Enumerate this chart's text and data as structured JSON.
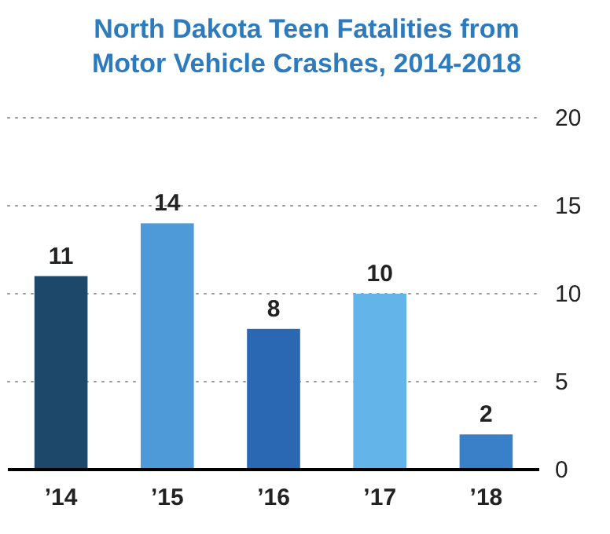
{
  "chart_data": {
    "type": "bar",
    "title": "North Dakota Teen Fatalities from Motor Vehicle Crashes, 2014-2018",
    "categories": [
      "’14",
      "’15",
      "’16",
      "’17",
      "’18"
    ],
    "values": [
      11,
      14,
      8,
      10,
      2
    ],
    "colors": [
      "#1d4869",
      "#4e9ad8",
      "#2a68b3",
      "#62b4e9",
      "#3a80c9"
    ],
    "ylim": [
      0,
      20
    ],
    "yticks": [
      0,
      5,
      10,
      15,
      20
    ],
    "grid": "y",
    "data_labels": true
  }
}
